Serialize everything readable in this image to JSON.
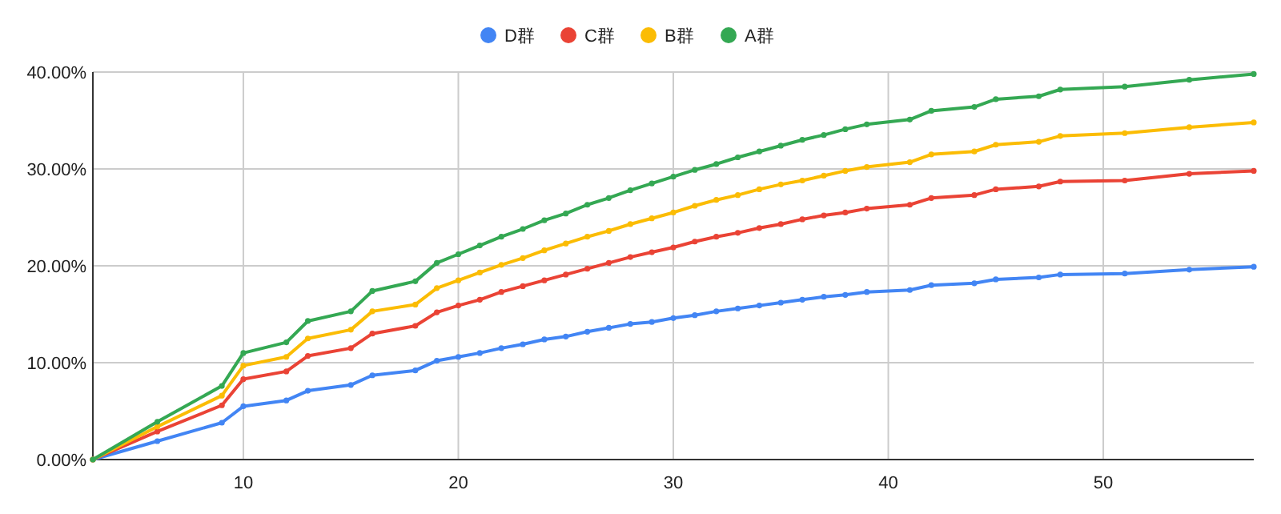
{
  "chart_data": {
    "type": "line",
    "x": [
      3,
      6,
      9,
      10,
      12,
      13,
      15,
      16,
      18,
      19,
      20,
      21,
      22,
      23,
      24,
      25,
      26,
      27,
      28,
      29,
      30,
      31,
      32,
      33,
      34,
      35,
      36,
      37,
      38,
      39,
      41,
      42,
      44,
      45,
      47,
      48,
      51,
      54,
      57
    ],
    "series": [
      {
        "name": "D群",
        "color": "#4285f4",
        "values": [
          0,
          1.9,
          3.8,
          5.5,
          6.1,
          7.1,
          7.7,
          8.7,
          9.2,
          10.2,
          10.6,
          11.0,
          11.5,
          11.9,
          12.4,
          12.7,
          13.2,
          13.6,
          14.0,
          14.2,
          14.6,
          14.9,
          15.3,
          15.6,
          15.9,
          16.2,
          16.5,
          16.8,
          17.0,
          17.3,
          17.5,
          18.0,
          18.2,
          18.6,
          18.8,
          19.1,
          19.2,
          19.6,
          19.9
        ]
      },
      {
        "name": "C群",
        "color": "#ea4335",
        "values": [
          0,
          2.9,
          5.6,
          8.3,
          9.1,
          10.7,
          11.5,
          13.0,
          13.8,
          15.2,
          15.9,
          16.5,
          17.3,
          17.9,
          18.5,
          19.1,
          19.7,
          20.3,
          20.9,
          21.4,
          21.9,
          22.5,
          23.0,
          23.4,
          23.9,
          24.3,
          24.8,
          25.2,
          25.5,
          25.9,
          26.3,
          27.0,
          27.3,
          27.9,
          28.2,
          28.7,
          28.8,
          29.5,
          29.8
        ]
      },
      {
        "name": "B群",
        "color": "#fbbc04",
        "values": [
          0,
          3.4,
          6.6,
          9.7,
          10.6,
          12.5,
          13.4,
          15.3,
          16.0,
          17.7,
          18.5,
          19.3,
          20.1,
          20.8,
          21.6,
          22.3,
          23.0,
          23.6,
          24.3,
          24.9,
          25.5,
          26.2,
          26.8,
          27.3,
          27.9,
          28.4,
          28.8,
          29.3,
          29.8,
          30.2,
          30.7,
          31.5,
          31.8,
          32.5,
          32.8,
          33.4,
          33.7,
          34.3,
          34.8
        ]
      },
      {
        "name": "A群",
        "color": "#34a853",
        "values": [
          0,
          3.9,
          7.6,
          11.0,
          12.1,
          14.3,
          15.3,
          17.4,
          18.4,
          20.3,
          21.2,
          22.1,
          23.0,
          23.8,
          24.7,
          25.4,
          26.3,
          27.0,
          27.8,
          28.5,
          29.2,
          29.9,
          30.5,
          31.2,
          31.8,
          32.4,
          33.0,
          33.5,
          34.1,
          34.6,
          35.1,
          36.0,
          36.4,
          37.2,
          37.5,
          38.2,
          38.5,
          39.2,
          39.8
        ]
      }
    ],
    "xlim": [
      3,
      57
    ],
    "xticks": [
      10,
      20,
      30,
      40,
      50
    ],
    "ylim": [
      0,
      40
    ],
    "yticks": [
      {
        "value": 0,
        "label": "0.00%"
      },
      {
        "value": 10,
        "label": "10.00%"
      },
      {
        "value": 20,
        "label": "20.00%"
      },
      {
        "value": 30,
        "label": "30.00%"
      },
      {
        "value": 40,
        "label": "40.00%"
      }
    ],
    "grid": true,
    "legend": "top",
    "marker": "circle",
    "line_style": "solid"
  }
}
